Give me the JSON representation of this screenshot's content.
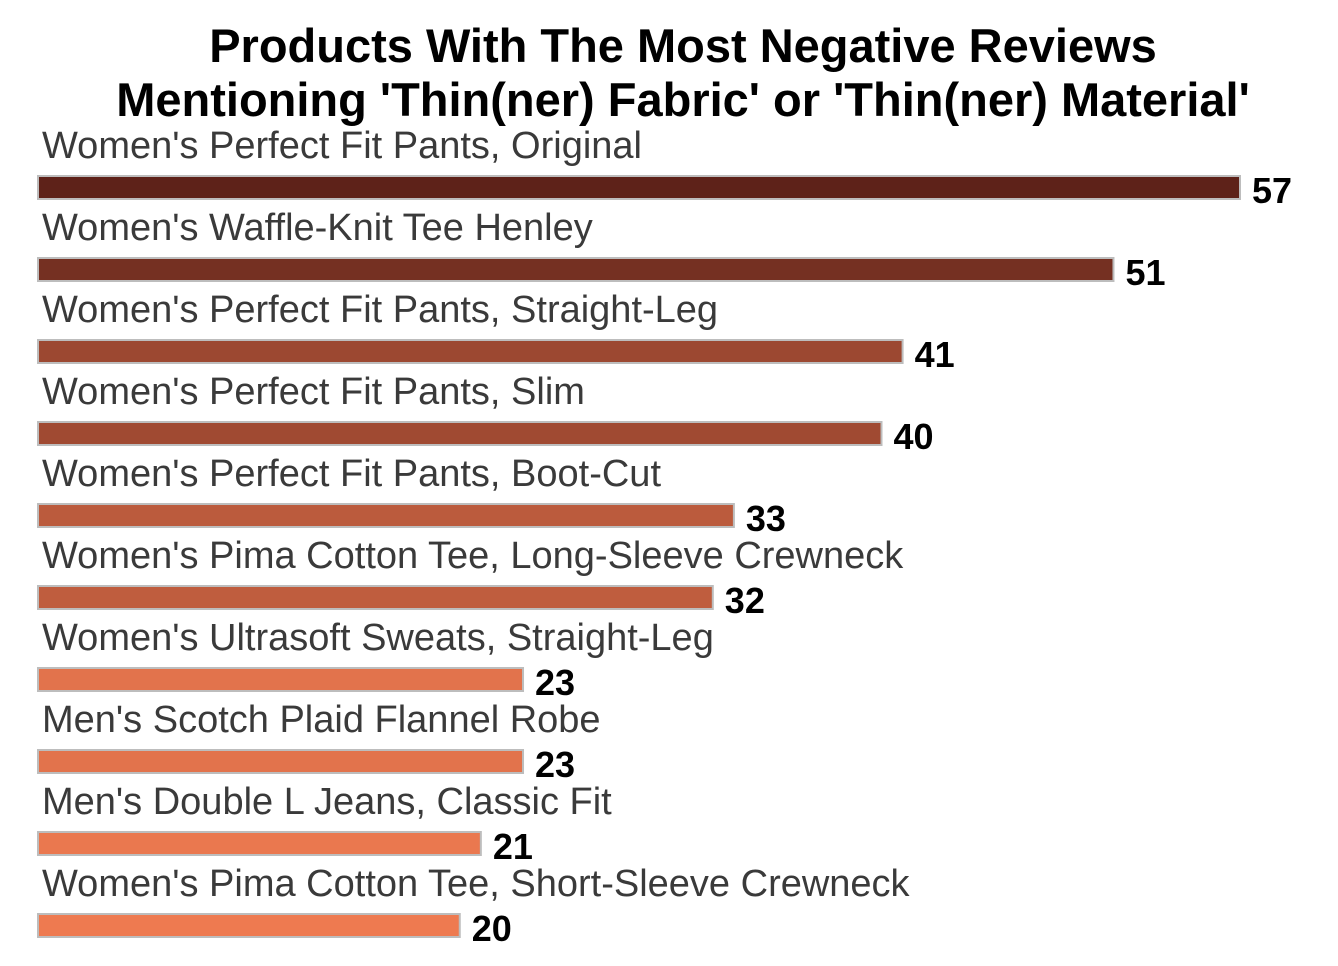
{
  "chart_data": {
    "type": "bar",
    "orientation": "horizontal",
    "title": "Products With The Most Negative Reviews\nMentioning 'Thin(ner) Fabric' or 'Thin(ner) Material'",
    "title_lines": [
      "Products With The Most Negative Reviews",
      "Mentioning 'Thin(ner) Fabric' or 'Thin(ner) Material'"
    ],
    "xlabel": "",
    "ylabel": "",
    "categories": [
      "Women's Perfect Fit Pants, Original",
      "Women's Waffle-Knit Tee Henley",
      "Women's Perfect Fit Pants, Straight-Leg",
      "Women's Perfect Fit Pants, Slim",
      "Women's Perfect Fit Pants, Boot-Cut",
      "Women's Pima Cotton Tee, Long-Sleeve Crewneck",
      "Women's Ultrasoft Sweats, Straight-Leg",
      "Men's Scotch Plaid Flannel Robe",
      "Men's Double L Jeans, Classic Fit",
      "Women's Pima Cotton Tee, Short-Sleeve Crewneck"
    ],
    "values": [
      57,
      51,
      41,
      40,
      33,
      32,
      23,
      23,
      21,
      20
    ],
    "xlim": [
      0,
      57
    ],
    "grid": false,
    "legend": "none",
    "colors": {
      "high": "#5e2219",
      "low": "#ee7a50",
      "bar_outline": "#bdbdbd"
    }
  }
}
